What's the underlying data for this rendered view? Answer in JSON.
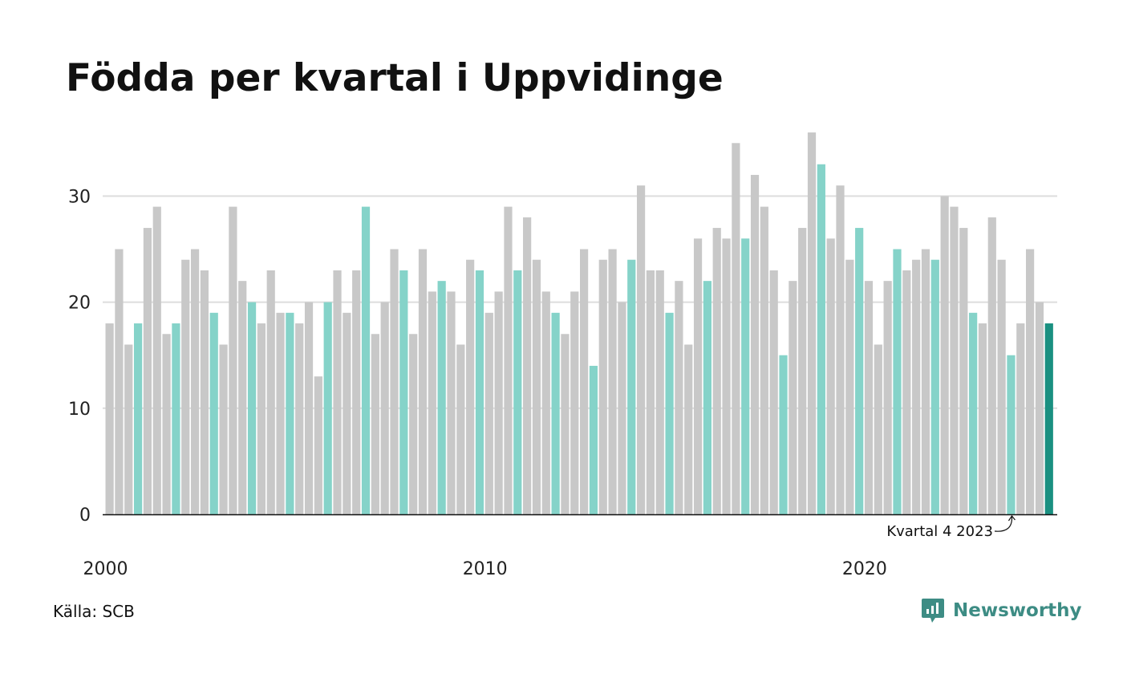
{
  "title": "Födda per kvartal i Uppvidinge",
  "source": "Källa: SCB",
  "brand": {
    "name": "Newsworthy",
    "icon": "newsworthy-logo-icon"
  },
  "colors": {
    "bar_default": "#c8c8c8",
    "bar_q4": "#85d3c9",
    "bar_latest": "#1a9081",
    "gridline": "#dddddd",
    "axis": "#111111",
    "brand": "#3d8c84"
  },
  "chart_data": {
    "type": "bar",
    "title": "Födda per kvartal i Uppvidinge",
    "xlabel": "",
    "ylabel": "",
    "ylim": [
      0,
      36
    ],
    "yticks": [
      0,
      10,
      20,
      30
    ],
    "xtick_labels": [
      "2000",
      "2010",
      "2020"
    ],
    "grid": true,
    "start_year": 2000,
    "values": [
      18,
      25,
      16,
      18,
      27,
      29,
      17,
      18,
      24,
      25,
      23,
      19,
      16,
      29,
      22,
      20,
      18,
      23,
      19,
      19,
      18,
      20,
      13,
      20,
      23,
      19,
      23,
      29,
      17,
      20,
      25,
      23,
      17,
      25,
      21,
      22,
      21,
      16,
      24,
      23,
      19,
      21,
      29,
      23,
      28,
      24,
      21,
      19,
      17,
      21,
      25,
      14,
      24,
      25,
      20,
      24,
      31,
      23,
      23,
      19,
      22,
      16,
      26,
      22,
      27,
      26,
      35,
      26,
      32,
      29,
      23,
      15,
      22,
      27,
      36,
      33,
      26,
      31,
      24,
      27,
      22,
      16,
      22,
      25,
      23,
      24,
      25,
      24,
      30,
      29,
      27,
      19,
      18,
      28,
      24,
      15,
      18,
      25,
      20,
      18
    ],
    "annotation": {
      "label": "Kvartal 4 2023",
      "year": 2023,
      "quarter": 4
    }
  }
}
